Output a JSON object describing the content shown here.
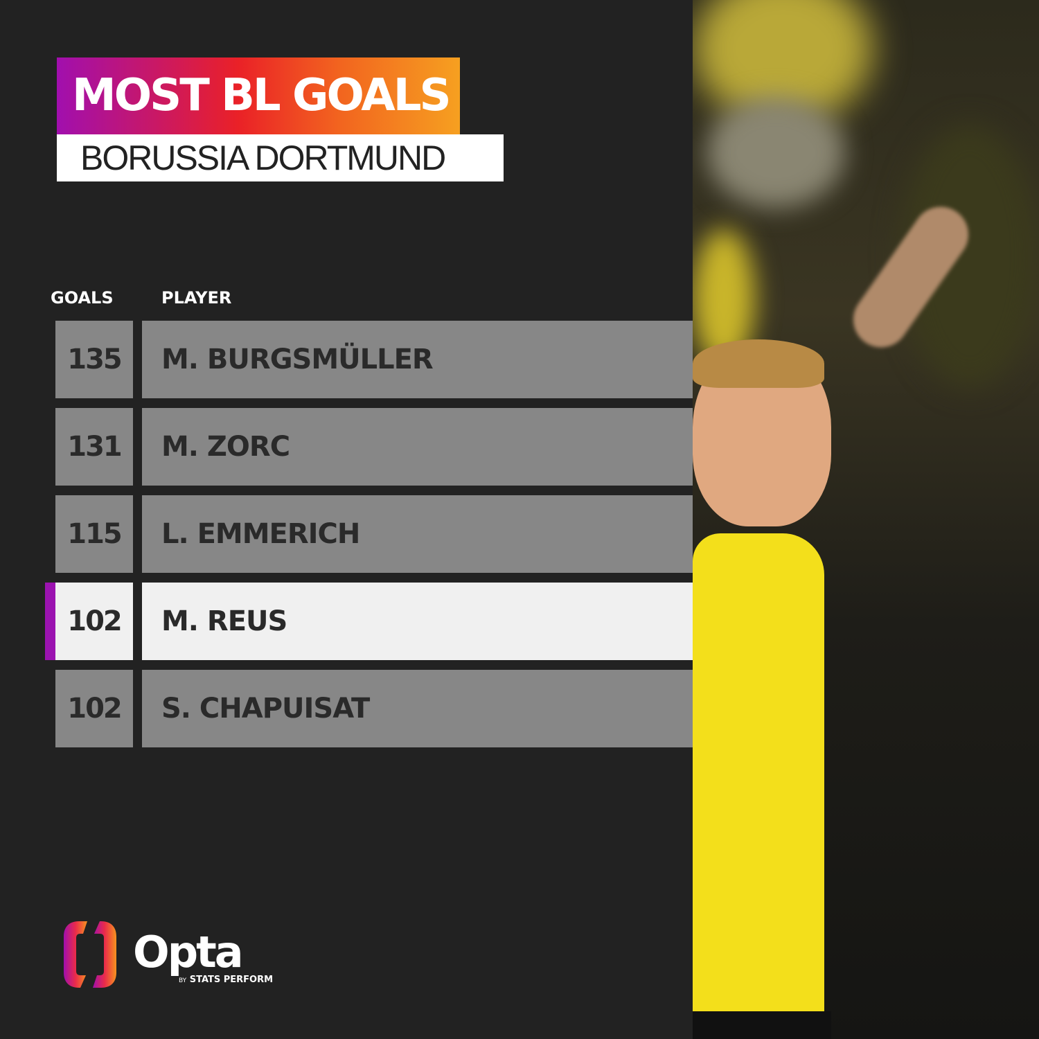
{
  "header": {
    "title": "MOST BL GOALS",
    "subtitle": "BORUSSIA DORTMUND"
  },
  "table": {
    "columns": [
      "GOALS",
      "PLAYER"
    ],
    "rows": [
      {
        "goals": "135",
        "player": "M. BURGSMÜLLER",
        "highlighted": false
      },
      {
        "goals": "131",
        "player": "M. ZORC",
        "highlighted": false
      },
      {
        "goals": "115",
        "player": "L. EMMERICH",
        "highlighted": false
      },
      {
        "goals": "102",
        "player": "M. REUS",
        "highlighted": true
      },
      {
        "goals": "102",
        "player": "S. CHAPUISAT",
        "highlighted": false
      }
    ]
  },
  "brand": {
    "name": "Opta",
    "by": "BY",
    "tagline": "STATS PERFORM"
  },
  "colors": {
    "background": "#222222",
    "row": "#878787",
    "highlight_row": "#f0f0f0",
    "highlight_marker": "#9b13b0",
    "gradient_start": "#a10fae",
    "gradient_end": "#f6a020",
    "kit_yellow": "#f3df1b"
  }
}
